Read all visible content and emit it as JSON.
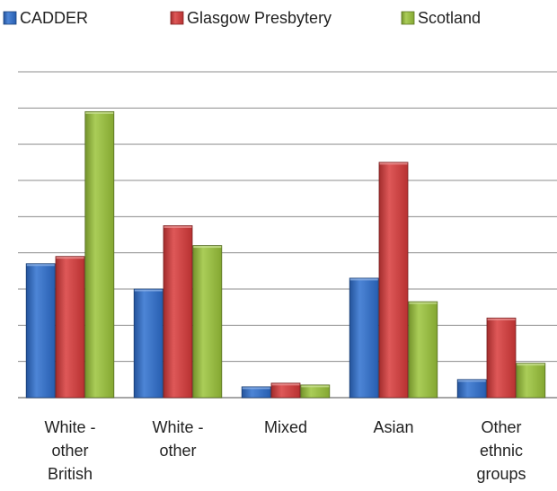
{
  "chart_data": {
    "type": "bar",
    "title": "",
    "xlabel": "",
    "ylabel": "",
    "categories": [
      [
        "White -",
        "other",
        "British"
      ],
      [
        "White -",
        "other"
      ],
      [
        "Mixed"
      ],
      [
        "Asian"
      ],
      [
        "Other",
        "ethnic",
        "groups"
      ]
    ],
    "series": [
      {
        "name": "CADDER",
        "color": "#2e6fcf",
        "values": [
          3.7,
          3.0,
          0.3,
          3.3,
          0.5
        ]
      },
      {
        "name": "Glasgow Presbytery",
        "color": "#d83a3a",
        "values": [
          3.9,
          4.75,
          0.4,
          6.5,
          2.2
        ]
      },
      {
        "name": "Scotland",
        "color": "#9bc43a",
        "values": [
          7.9,
          4.2,
          0.35,
          2.65,
          0.95
        ]
      }
    ],
    "ylim": [
      0,
      9
    ],
    "grid": true,
    "legend_position": "top"
  }
}
